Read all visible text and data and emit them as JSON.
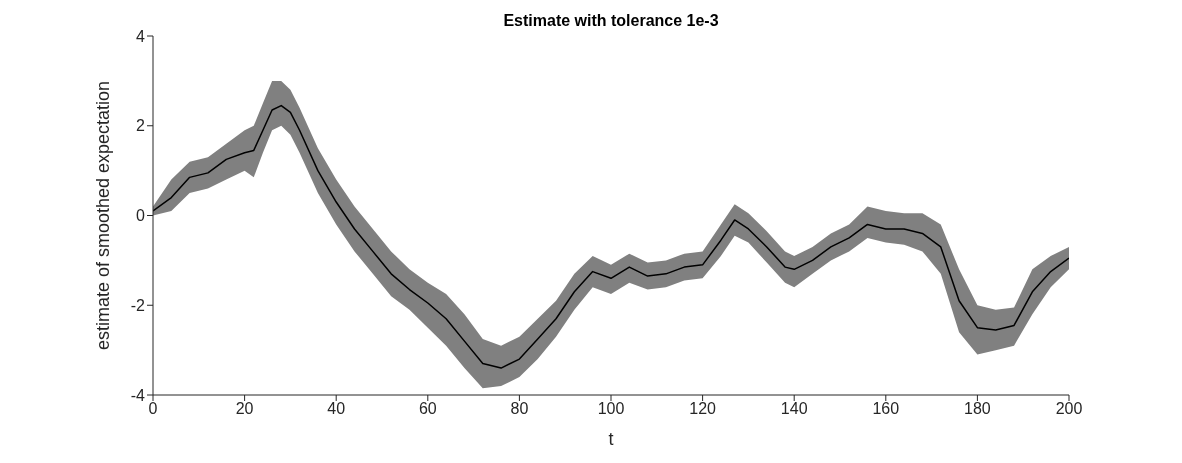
{
  "chart_data": {
    "type": "line",
    "title": "Estimate with tolerance 1e-3",
    "xlabel": "t",
    "ylabel": "estimate of smoothed expectation",
    "x": [
      0,
      4,
      8,
      12,
      16,
      20,
      22,
      24,
      26,
      28,
      30,
      32,
      36,
      40,
      44,
      48,
      52,
      56,
      60,
      64,
      68,
      72,
      76,
      80,
      84,
      88,
      92,
      96,
      100,
      104,
      108,
      112,
      116,
      120,
      124,
      127,
      130,
      134,
      138,
      140,
      144,
      148,
      152,
      156,
      160,
      164,
      168,
      172,
      176,
      180,
      184,
      188,
      192,
      196,
      200
    ],
    "series": [
      {
        "color": "#000000",
        "values": [
          0.1,
          0.4,
          0.85,
          0.95,
          1.25,
          1.4,
          1.45,
          1.9,
          2.35,
          2.45,
          2.3,
          1.9,
          1.0,
          0.3,
          -0.3,
          -0.8,
          -1.3,
          -1.65,
          -1.95,
          -2.3,
          -2.8,
          -3.3,
          -3.4,
          -3.2,
          -2.75,
          -2.3,
          -1.7,
          -1.25,
          -1.4,
          -1.15,
          -1.35,
          -1.3,
          -1.15,
          -1.1,
          -0.55,
          -0.1,
          -0.3,
          -0.7,
          -1.15,
          -1.2,
          -1.0,
          -0.7,
          -0.5,
          -0.2,
          -0.3,
          -0.3,
          -0.4,
          -0.7,
          -1.9,
          -2.5,
          -2.55,
          -2.45,
          -1.7,
          -1.25,
          -0.95
        ],
        "lower": [
          0,
          0.1,
          0.5,
          0.6,
          0.8,
          1.0,
          0.85,
          1.4,
          1.9,
          2.0,
          1.8,
          1.4,
          0.5,
          -0.2,
          -0.8,
          -1.3,
          -1.8,
          -2.1,
          -2.5,
          -2.9,
          -3.4,
          -3.85,
          -3.8,
          -3.6,
          -3.2,
          -2.7,
          -2.1,
          -1.6,
          -1.75,
          -1.5,
          -1.65,
          -1.6,
          -1.45,
          -1.4,
          -0.9,
          -0.45,
          -0.6,
          -1.05,
          -1.5,
          -1.6,
          -1.3,
          -1.0,
          -0.8,
          -0.5,
          -0.6,
          -0.65,
          -0.8,
          -1.3,
          -2.6,
          -3.1,
          -3.0,
          -2.9,
          -2.2,
          -1.6,
          -1.2
        ],
        "upper": [
          0.2,
          0.8,
          1.2,
          1.3,
          1.6,
          1.9,
          2.0,
          2.5,
          3.0,
          3.0,
          2.8,
          2.4,
          1.5,
          0.8,
          0.2,
          -0.3,
          -0.8,
          -1.2,
          -1.5,
          -1.75,
          -2.2,
          -2.75,
          -2.9,
          -2.7,
          -2.3,
          -1.9,
          -1.3,
          -0.9,
          -1.1,
          -0.85,
          -1.05,
          -1.0,
          -0.85,
          -0.8,
          -0.2,
          0.25,
          0.05,
          -0.35,
          -0.8,
          -0.9,
          -0.7,
          -0.4,
          -0.2,
          0.2,
          0.1,
          0.05,
          0.05,
          -0.2,
          -1.2,
          -2.0,
          -2.1,
          -2.05,
          -1.2,
          -0.9,
          -0.7
        ]
      }
    ],
    "xlim": [
      0,
      200
    ],
    "xticks": [
      0,
      20,
      40,
      60,
      80,
      100,
      120,
      140,
      160,
      180,
      200
    ],
    "ylim": [
      -4,
      4
    ],
    "yticks": [
      -4,
      -2,
      0,
      2,
      4
    ],
    "grid": false,
    "legend": false,
    "marker": "none",
    "line_style": "solid"
  }
}
